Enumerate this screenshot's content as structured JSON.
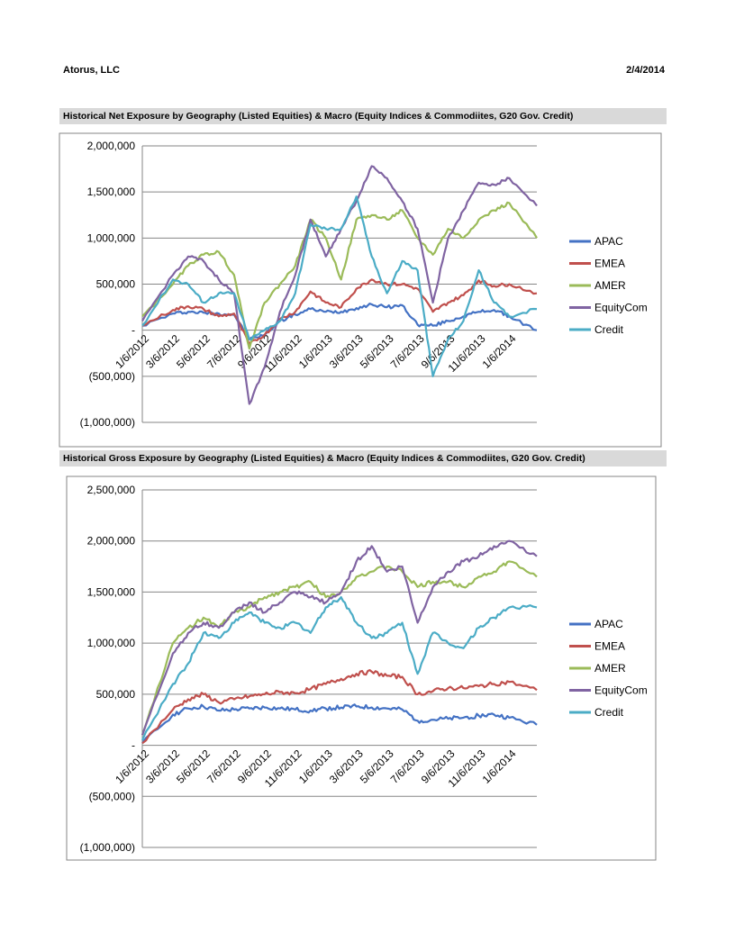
{
  "header": {
    "company": "Atorus, LLC",
    "date": "2/4/2014"
  },
  "colors": {
    "APAC": "#4472c4",
    "EMEA": "#c0504d",
    "AMER": "#9bbb59",
    "EquityCom": "#8064a2",
    "Credit": "#4bacc6"
  },
  "chart_data": [
    {
      "type": "line",
      "title": "Historical Net Exposure by Geography (Listed Equities) & Macro (Equity Indices & Commodiites, G20 Gov. Credit)",
      "ylim": [
        -1000000,
        2000000
      ],
      "y_ticks": [
        {
          "v": 2000000,
          "label": "2,000,000"
        },
        {
          "v": 1500000,
          "label": "1,500,000"
        },
        {
          "v": 1000000,
          "label": "1,000,000"
        },
        {
          "v": 500000,
          "label": "500,000"
        },
        {
          "v": 0,
          "label": "-"
        },
        {
          "v": -500000,
          "label": "(500,000)"
        },
        {
          "v": -1000000,
          "label": "(1,000,000)"
        }
      ],
      "x_labels": [
        "1/6/2012",
        "3/6/2012",
        "5/6/2012",
        "7/6/2012",
        "9/6/2012",
        "11/6/2012",
        "1/6/2013",
        "3/6/2013",
        "5/6/2013",
        "7/6/2013",
        "9/6/2013",
        "11/6/2013",
        "1/6/2014"
      ],
      "x": [
        0,
        1,
        1.5,
        2,
        2.5,
        3,
        3.5,
        4,
        4.5,
        5,
        5.5,
        6,
        6.5,
        7,
        7.5,
        8,
        8.5,
        9,
        9.5,
        10,
        10.5,
        11,
        11.5,
        12,
        12.9
      ],
      "series": [
        {
          "name": "APAC",
          "values": [
            50000,
            180000,
            200000,
            190000,
            180000,
            170000,
            -100000,
            -50000,
            100000,
            170000,
            230000,
            200000,
            200000,
            240000,
            280000,
            250000,
            270000,
            60000,
            50000,
            100000,
            150000,
            200000,
            220000,
            150000,
            0
          ]
        },
        {
          "name": "EMEA",
          "values": [
            50000,
            220000,
            260000,
            230000,
            150000,
            180000,
            -150000,
            -50000,
            120000,
            200000,
            420000,
            300000,
            250000,
            450000,
            550000,
            500000,
            500000,
            450000,
            200000,
            300000,
            380000,
            540000,
            480000,
            500000,
            400000
          ]
        },
        {
          "name": "AMER",
          "values": [
            150000,
            500000,
            700000,
            820000,
            850000,
            600000,
            -200000,
            300000,
            500000,
            700000,
            1200000,
            1000000,
            550000,
            1200000,
            1250000,
            1200000,
            1300000,
            1000000,
            820000,
            1100000,
            1000000,
            1200000,
            1300000,
            1380000,
            1000000
          ]
        },
        {
          "name": "EquityCom",
          "values": [
            100000,
            600000,
            800000,
            750000,
            550000,
            400000,
            -800000,
            -400000,
            200000,
            600000,
            1200000,
            800000,
            1100000,
            1400000,
            1780000,
            1650000,
            1400000,
            1100000,
            300000,
            1000000,
            1300000,
            1600000,
            1580000,
            1650000,
            1350000
          ]
        },
        {
          "name": "Credit",
          "values": [
            50000,
            550000,
            500000,
            300000,
            400000,
            400000,
            -100000,
            0,
            100000,
            400000,
            1150000,
            1100000,
            1100000,
            1450000,
            800000,
            400000,
            750000,
            650000,
            -500000,
            -100000,
            100000,
            650000,
            300000,
            150000,
            230000
          ]
        }
      ]
    },
    {
      "type": "line",
      "title": "Historical Gross Exposure by Geography (Listed Equities) & Macro (Equity Indices & Commodiites, G20 Gov. Credit)",
      "ylim": [
        -1000000,
        2500000
      ],
      "y_ticks": [
        {
          "v": 2500000,
          "label": "2,500,000"
        },
        {
          "v": 2000000,
          "label": "2,000,000"
        },
        {
          "v": 1500000,
          "label": "1,500,000"
        },
        {
          "v": 1000000,
          "label": "1,000,000"
        },
        {
          "v": 500000,
          "label": "500,000"
        },
        {
          "v": 0,
          "label": "-"
        },
        {
          "v": -500000,
          "label": "(500,000)"
        },
        {
          "v": -1000000,
          "label": "(1,000,000)"
        }
      ],
      "x_labels": [
        "1/6/2012",
        "3/6/2012",
        "5/6/2012",
        "7/6/2012",
        "9/6/2012",
        "11/6/2012",
        "1/6/2013",
        "3/6/2013",
        "5/6/2013",
        "7/6/2013",
        "9/6/2013",
        "11/6/2013",
        "1/6/2014"
      ],
      "x": [
        0,
        1,
        1.5,
        2,
        2.5,
        3,
        3.5,
        4,
        4.5,
        5,
        5.5,
        6,
        6.5,
        7,
        7.5,
        8,
        8.5,
        9,
        9.5,
        10,
        10.5,
        11,
        11.5,
        12,
        12.9
      ],
      "series": [
        {
          "name": "APAC",
          "values": [
            20000,
            300000,
            360000,
            380000,
            340000,
            350000,
            360000,
            370000,
            360000,
            350000,
            340000,
            360000,
            370000,
            380000,
            370000,
            360000,
            350000,
            240000,
            250000,
            260000,
            270000,
            290000,
            300000,
            270000,
            200000
          ]
        },
        {
          "name": "EMEA",
          "values": [
            20000,
            350000,
            450000,
            500000,
            420000,
            450000,
            480000,
            500000,
            520000,
            510000,
            550000,
            600000,
            650000,
            700000,
            720000,
            680000,
            670000,
            500000,
            530000,
            560000,
            560000,
            580000,
            600000,
            620000,
            540000
          ]
        },
        {
          "name": "AMER",
          "values": [
            100000,
            1000000,
            1150000,
            1250000,
            1150000,
            1300000,
            1350000,
            1450000,
            1500000,
            1550000,
            1600000,
            1450000,
            1500000,
            1650000,
            1700000,
            1750000,
            1700000,
            1550000,
            1600000,
            1600000,
            1550000,
            1650000,
            1700000,
            1800000,
            1650000
          ]
        },
        {
          "name": "EquityCom",
          "values": [
            100000,
            900000,
            1100000,
            1200000,
            1150000,
            1300000,
            1400000,
            1300000,
            1400000,
            1500000,
            1450000,
            1400000,
            1500000,
            1800000,
            1950000,
            1700000,
            1750000,
            1200000,
            1550000,
            1700000,
            1800000,
            1850000,
            1950000,
            2000000,
            1850000
          ]
        },
        {
          "name": "Credit",
          "values": [
            50000,
            600000,
            800000,
            1100000,
            1050000,
            1200000,
            1300000,
            1200000,
            1150000,
            1200000,
            1100000,
            1350000,
            1450000,
            1200000,
            1050000,
            1100000,
            1200000,
            700000,
            1100000,
            1000000,
            950000,
            1150000,
            1250000,
            1350000,
            1350000
          ]
        }
      ]
    }
  ]
}
